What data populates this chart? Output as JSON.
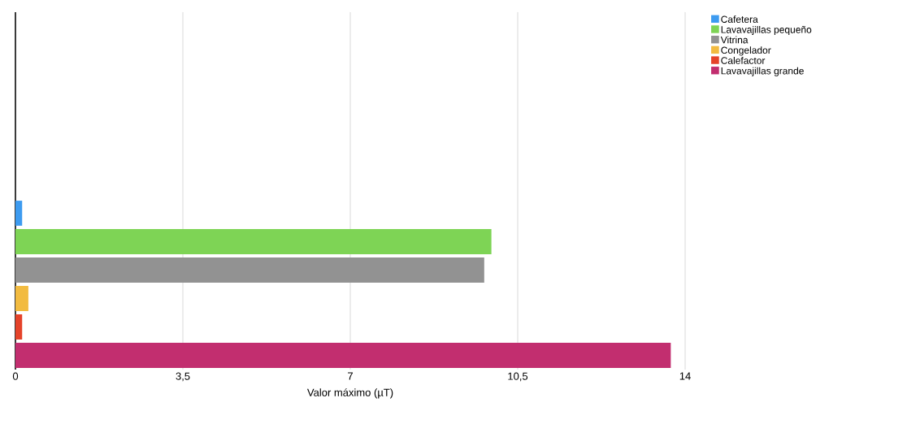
{
  "chart_data": {
    "type": "bar",
    "orientation": "horizontal",
    "xlabel": "Valor máximo (µT)",
    "categories": [
      null
    ],
    "series": [
      {
        "name": "Cafetera",
        "color": "#3d9bf0",
        "values": [
          0.14
        ]
      },
      {
        "name": "Lavavajillas pequeño",
        "color": "#7ed455",
        "values": [
          9.95
        ]
      },
      {
        "name": "Vitrina",
        "color": "#929292",
        "values": [
          9.8
        ]
      },
      {
        "name": "Congelador",
        "color": "#f2bb40",
        "values": [
          0.27
        ]
      },
      {
        "name": "Calefactor",
        "color": "#e5432a",
        "values": [
          0.14
        ]
      },
      {
        "name": "Lavavajillas grande",
        "color": "#c22e6f",
        "values": [
          13.7
        ]
      }
    ],
    "xlim": [
      0,
      14
    ],
    "xticks": [
      0,
      {
        "value": 3.5,
        "label": "3,5"
      },
      7,
      {
        "value": 10.5,
        "label": "10,5"
      },
      14
    ],
    "grid": "x",
    "legend": "top right"
  }
}
